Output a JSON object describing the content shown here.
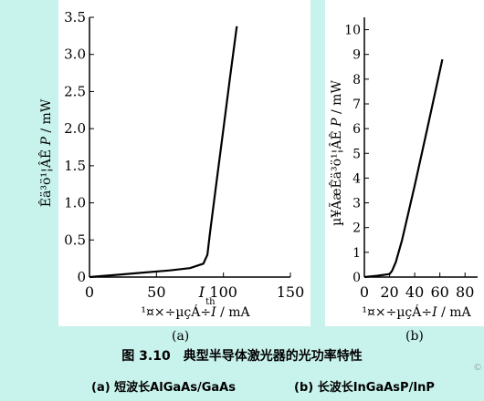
{
  "chart_data": [
    {
      "type": "line",
      "xlabel": "¹¤×÷µçÁ÷I / mA",
      "ylabel": "Êä³ö¹¦ÂÊ P / mW",
      "xlim": [
        0,
        150
      ],
      "ylim": [
        0,
        3.5
      ],
      "x_ticks": [
        "0",
        "50",
        "100",
        "150"
      ],
      "y_ticks": [
        "0",
        "0.5",
        "1.0",
        "1.5",
        "2.0",
        "2.5",
        "3.0",
        "3.5"
      ],
      "annotation": "I",
      "annotation_sub": "th",
      "series": [
        {
          "x": [
            0,
            20,
            40,
            60,
            75,
            85,
            88,
            90,
            95,
            100,
            105,
            110
          ],
          "y": [
            0,
            0.03,
            0.06,
            0.09,
            0.12,
            0.18,
            0.3,
            0.6,
            1.3,
            2.0,
            2.7,
            3.38
          ]
        }
      ]
    },
    {
      "type": "line",
      "xlabel": "¹¤×÷µçÁ÷I / mA",
      "ylabel": "µ¥ÃæÊä³ö¹¦ÂÊ P / mW",
      "xlim": [
        0,
        90
      ],
      "ylim": [
        0,
        10.5
      ],
      "x_ticks": [
        "0",
        "20",
        "40",
        "60",
        "80"
      ],
      "y_ticks": [
        "0",
        "1",
        "2",
        "3",
        "4",
        "5",
        "6",
        "7",
        "8",
        "9",
        "10"
      ],
      "series": [
        {
          "x": [
            0,
            10,
            20,
            22,
            25,
            30,
            40,
            50,
            62
          ],
          "y": [
            0,
            0.05,
            0.12,
            0.25,
            0.6,
            1.5,
            3.7,
            6.0,
            8.8
          ]
        }
      ]
    }
  ],
  "labels": {
    "a": "(a)",
    "b": "(b)"
  },
  "caption": "图 3.10　典型半导体激光器的光功率特性",
  "subcaption_a": "(a) 短波长AlGaAs/GaAs",
  "subcaption_b": "(b) 长波长InGaAsP/InP",
  "watermark": "©"
}
